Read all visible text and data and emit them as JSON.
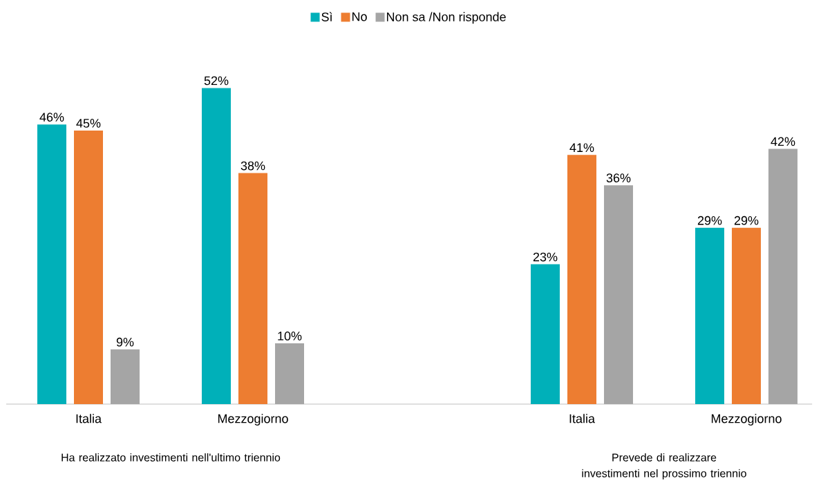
{
  "chart_data": {
    "type": "bar",
    "categories": [
      "Italia",
      "Mezzogiorno",
      null,
      "Italia",
      "Mezzogiorno"
    ],
    "series": [
      {
        "name": "Sì",
        "color": "#00b0b9",
        "values": [
          46,
          52,
          null,
          23,
          29
        ],
        "value_labels": [
          "46%",
          "52%",
          null,
          "23%",
          "29%"
        ]
      },
      {
        "name": "No",
        "color": "#ed7d31",
        "values": [
          45,
          38,
          null,
          41,
          29
        ],
        "value_labels": [
          "45%",
          "38%",
          null,
          "41%",
          "29%"
        ]
      },
      {
        "name": "Non sa /Non risponde",
        "color": "#a5a5a5",
        "values": [
          9,
          10,
          null,
          36,
          42
        ],
        "value_labels": [
          "9%",
          "10%",
          null,
          "36%",
          "42%"
        ]
      }
    ],
    "legend": "top",
    "annotations": [
      "Ha realizzato investimenti nell'ultimo triennio",
      "Prevede di realizzare investimenti nel prossimo triennio"
    ]
  }
}
